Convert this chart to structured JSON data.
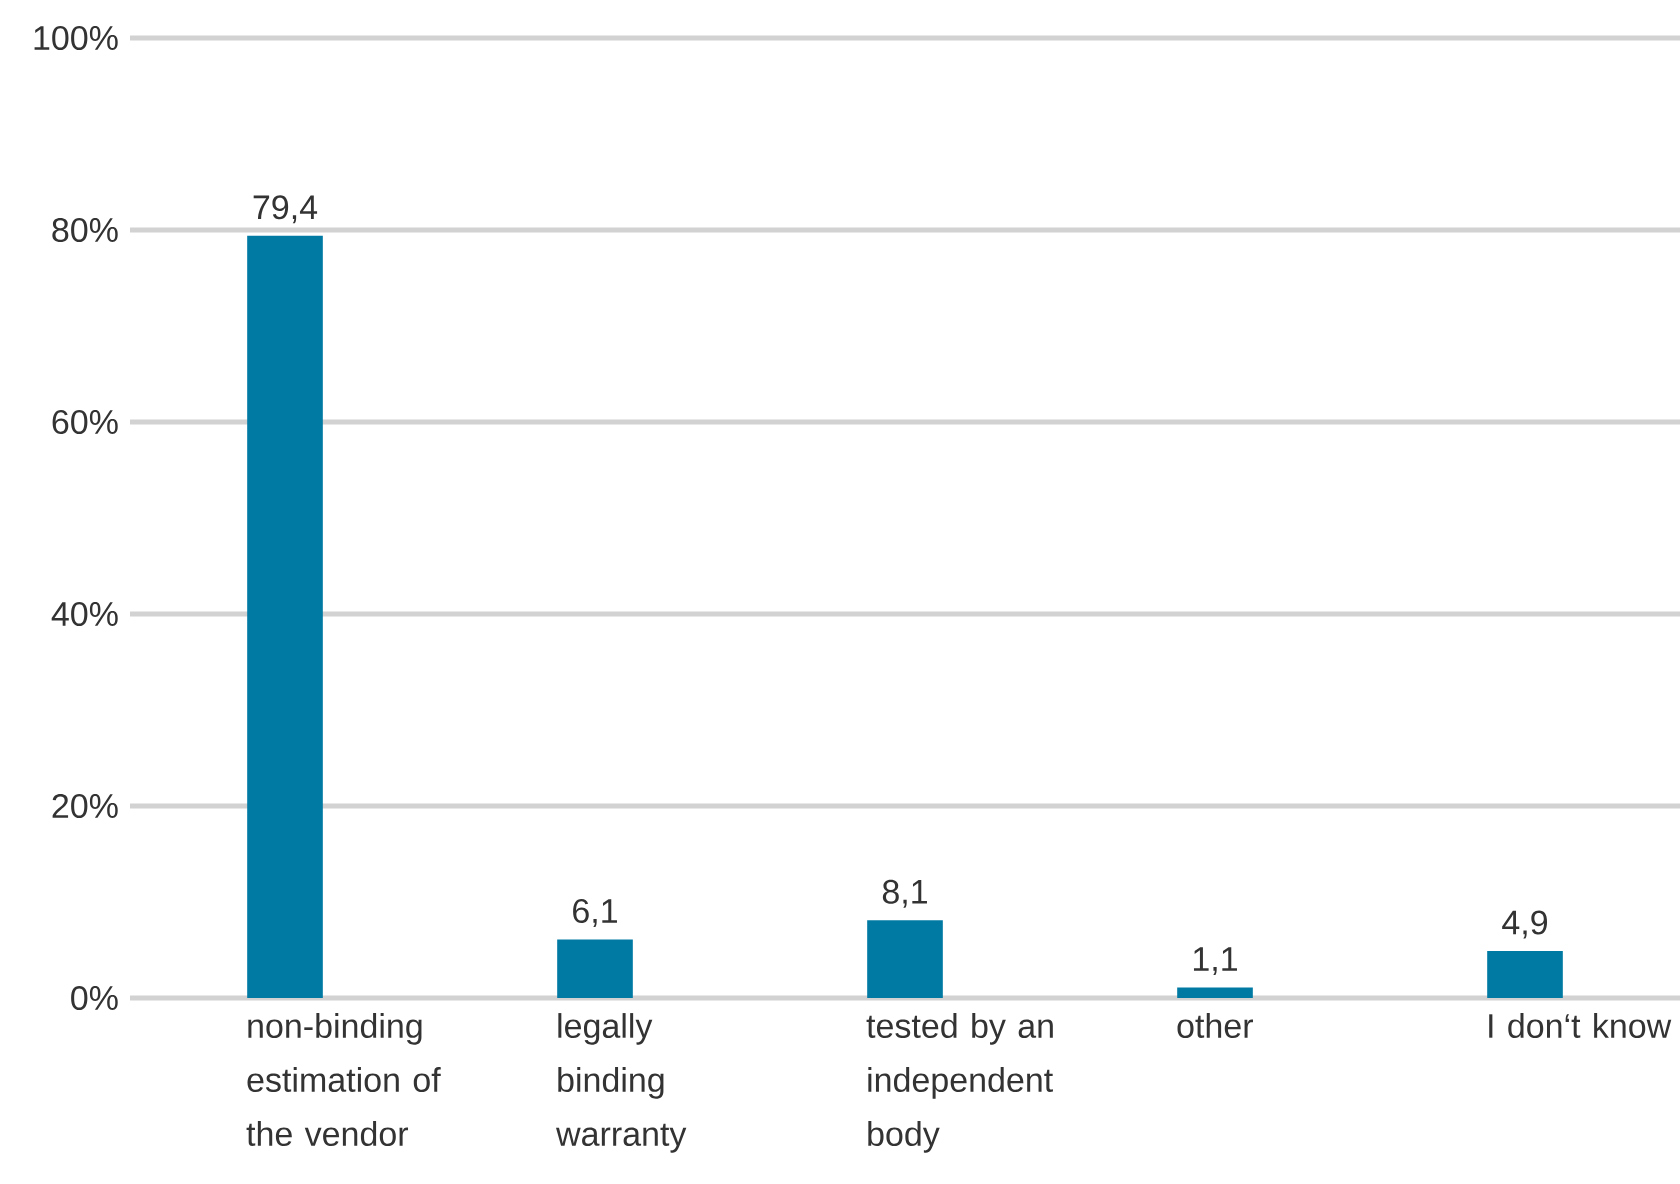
{
  "chart_data": {
    "type": "bar",
    "categories": [
      "non-binding estimation of the vendor",
      "legally binding warranty",
      "tested by an independent body",
      "other",
      "I don‘t know"
    ],
    "values": [
      79.4,
      6.1,
      8.1,
      1.1,
      4.9
    ],
    "value_labels": [
      "79,4",
      "6,1",
      "8,1",
      "1,1",
      "4,9"
    ],
    "color": "#007aa3",
    "ylim": [
      0,
      100
    ],
    "yticks": [
      {
        "value": 0,
        "label": "0%"
      },
      {
        "value": 20,
        "label": "20%"
      },
      {
        "value": 40,
        "label": "40%"
      },
      {
        "value": 60,
        "label": "60%"
      },
      {
        "value": 80,
        "label": "80%"
      },
      {
        "value": 100,
        "label": "100%"
      }
    ],
    "grid": "y"
  }
}
